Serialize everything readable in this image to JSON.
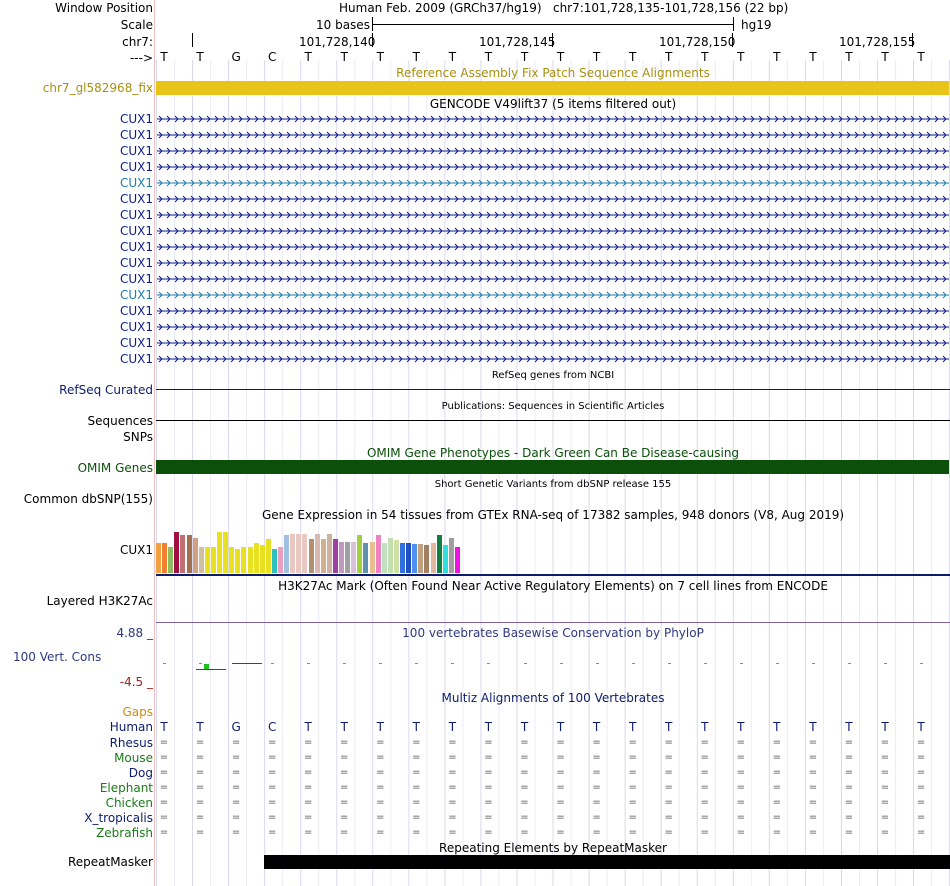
{
  "header": {
    "window_position_label": "Window Position",
    "assembly": "Human Feb. 2009 (GRCh37/hg19)",
    "position": "chr7:101,728,135-101,728,156 (22 bp)",
    "scale_label": "Scale",
    "scale_bar_text": "10 bases",
    "db": "hg19",
    "chrom_label": "chr7:",
    "arrow_label": "--->",
    "coords": [
      "101,728,140",
      "101,728,145",
      "101,728,150",
      "101,728,155"
    ]
  },
  "sequence": [
    "T",
    "T",
    "G",
    "C",
    "T",
    "T",
    "T",
    "T",
    "T",
    "T",
    "T",
    "T",
    "T",
    "T",
    "T",
    "T",
    "T",
    "T",
    "T",
    "T",
    "T",
    "T"
  ],
  "fix_patch": {
    "title": "Reference Assembly Fix Patch Sequence Alignments",
    "label": "chr7_gl582968_fix",
    "color": "#e8c418"
  },
  "gencode": {
    "title": "GENCODE V49lift37 (5 items filtered out)",
    "genes": [
      {
        "name": "CUX1",
        "color": "#0c1c8c"
      },
      {
        "name": "CUX1",
        "color": "#0c1c8c"
      },
      {
        "name": "CUX1",
        "color": "#0c1c8c"
      },
      {
        "name": "CUX1",
        "color": "#0c1c8c"
      },
      {
        "name": "CUX1",
        "color": "#1c7ea8"
      },
      {
        "name": "CUX1",
        "color": "#0c1c8c"
      },
      {
        "name": "CUX1",
        "color": "#0c1c8c"
      },
      {
        "name": "CUX1",
        "color": "#0c1c8c"
      },
      {
        "name": "CUX1",
        "color": "#0c1c8c"
      },
      {
        "name": "CUX1",
        "color": "#0c1c8c"
      },
      {
        "name": "CUX1",
        "color": "#0c1c8c"
      },
      {
        "name": "CUX1",
        "color": "#1c7ea8"
      },
      {
        "name": "CUX1",
        "color": "#0c1c8c"
      },
      {
        "name": "CUX1",
        "color": "#0c1c8c"
      },
      {
        "name": "CUX1",
        "color": "#0c1c8c"
      },
      {
        "name": "CUX1",
        "color": "#0c1c8c"
      }
    ]
  },
  "refseq": {
    "title": "RefSeq genes from NCBI",
    "label": "RefSeq Curated"
  },
  "publications": {
    "title": "Publications: Sequences in Scientific Articles",
    "label1": "Sequences",
    "label2": "SNPs"
  },
  "omim": {
    "title": "OMIM Gene Phenotypes - Dark Green Can Be Disease-causing",
    "label": "OMIM Genes",
    "color": "#0b4f0b"
  },
  "dbsnp": {
    "title": "Short Genetic Variants from dbSNP release 155",
    "label": "Common dbSNP(155)"
  },
  "gtex": {
    "title": "Gene Expression in 54 tissues from GTEx RNA-seq of 17382 samples, 948 donors (V8, Aug 2019)",
    "label": "CUX1",
    "bars": [
      {
        "v": 0.62,
        "c": "#f0a040"
      },
      {
        "v": 0.62,
        "c": "#f08030"
      },
      {
        "v": 0.55,
        "c": "#8fbc60"
      },
      {
        "v": 0.85,
        "c": "#a01040"
      },
      {
        "v": 0.8,
        "c": "#c07070"
      },
      {
        "v": 0.8,
        "c": "#a07050"
      },
      {
        "v": 0.72,
        "c": "#d0a080"
      },
      {
        "v": 0.55,
        "c": "#d0c0a0"
      },
      {
        "v": 0.55,
        "c": "#e8e020"
      },
      {
        "v": 0.55,
        "c": "#e8e020"
      },
      {
        "v": 0.85,
        "c": "#e8e020"
      },
      {
        "v": 0.85,
        "c": "#e8e020"
      },
      {
        "v": 0.55,
        "c": "#e8e020"
      },
      {
        "v": 0.5,
        "c": "#e8e020"
      },
      {
        "v": 0.55,
        "c": "#e8e020"
      },
      {
        "v": 0.55,
        "c": "#e8e020"
      },
      {
        "v": 0.62,
        "c": "#e8e020"
      },
      {
        "v": 0.58,
        "c": "#e8e020"
      },
      {
        "v": 0.7,
        "c": "#e8e020"
      },
      {
        "v": 0.5,
        "c": "#30c0c0"
      },
      {
        "v": 0.55,
        "c": "#e8a0c0"
      },
      {
        "v": 0.8,
        "c": "#a0c0e0"
      },
      {
        "v": 0.82,
        "c": "#e8c8c0"
      },
      {
        "v": 0.82,
        "c": "#e8c8c0"
      },
      {
        "v": 0.82,
        "c": "#e8c8c0"
      },
      {
        "v": 0.7,
        "c": "#b09070"
      },
      {
        "v": 0.82,
        "c": "#d8b8b0"
      },
      {
        "v": 0.7,
        "c": "#d0b090"
      },
      {
        "v": 0.82,
        "c": "#d0b0a0"
      },
      {
        "v": 0.7,
        "c": "#a040a0"
      },
      {
        "v": 0.65,
        "c": "#c098c0"
      },
      {
        "v": 0.65,
        "c": "#a0a0a0"
      },
      {
        "v": 0.65,
        "c": "#d8c0d8"
      },
      {
        "v": 0.8,
        "c": "#a0d040"
      },
      {
        "v": 0.62,
        "c": "#6090b0"
      },
      {
        "v": 0.65,
        "c": "#e8c090"
      },
      {
        "v": 0.8,
        "c": "#f080c0"
      },
      {
        "v": 0.62,
        "c": "#c0e0c0"
      },
      {
        "v": 0.72,
        "c": "#c0e0b0"
      },
      {
        "v": 0.68,
        "c": "#d0e0a0"
      },
      {
        "v": 0.62,
        "c": "#3070e0"
      },
      {
        "v": 0.62,
        "c": "#2050c0"
      },
      {
        "v": 0.6,
        "c": "#5090f0"
      },
      {
        "v": 0.6,
        "c": "#c0a080"
      },
      {
        "v": 0.58,
        "c": "#a08060"
      },
      {
        "v": 0.62,
        "c": "#e0b8a0"
      },
      {
        "v": 0.8,
        "c": "#108040"
      },
      {
        "v": 0.58,
        "c": "#30e0e0"
      },
      {
        "v": 0.72,
        "c": "#a0a0a0"
      },
      {
        "v": 0.55,
        "c": "#f010e0"
      }
    ]
  },
  "h3k27ac": {
    "title": "H3K27Ac Mark (Often Found Near Active Regulatory Elements) on 7 cell lines from ENCODE",
    "label": "Layered H3K27Ac"
  },
  "phylop": {
    "title": "100 vertebrates Basewise Conservation by PhyloP",
    "label": "100 Vert. Cons",
    "max": "4.88 _",
    "min": "-4.5 _"
  },
  "multiz": {
    "title": "Multiz Alignments of 100 Vertebrates",
    "gaps_label": "Gaps",
    "human_label": "Human",
    "species": [
      {
        "name": "Rhesus",
        "color": "#0c1c6c"
      },
      {
        "name": "Mouse",
        "color": "#1a7a1a"
      },
      {
        "name": "Dog",
        "color": "#0c1c6c"
      },
      {
        "name": "Elephant",
        "color": "#1a7a1a"
      },
      {
        "name": "Chicken",
        "color": "#1a7a1a"
      },
      {
        "name": "X_tropicalis",
        "color": "#0c1c6c"
      },
      {
        "name": "Zebrafish",
        "color": "#1a7a1a"
      }
    ],
    "eq": "="
  },
  "repeatmasker": {
    "title": "Repeating Elements by RepeatMasker",
    "label": "RepeatMasker"
  }
}
